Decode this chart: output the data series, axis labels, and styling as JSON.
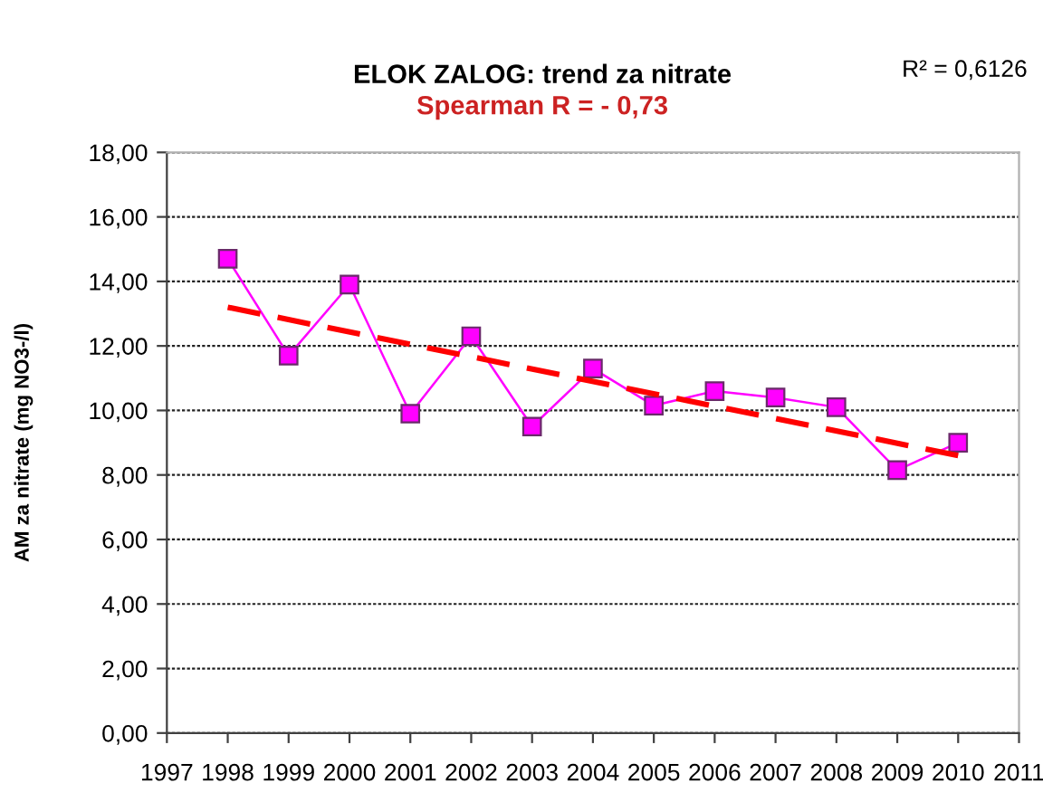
{
  "chart_data": {
    "type": "line",
    "title": "ELOK ZALOG: trend za nitrate",
    "subtitle": "Spearman R = - 0,73",
    "ylabel": "AM za nitrate (mg NO3-/l)",
    "annotations": [
      "R² = 0,6126"
    ],
    "series": [
      {
        "color": "#ff00ff",
        "marker": "square",
        "line_style": "solid",
        "x": [
          1998,
          1999,
          2000,
          2001,
          2002,
          2003,
          2004,
          2005,
          2006,
          2007,
          2008,
          2009,
          2010
        ],
        "values": [
          14.7,
          11.7,
          13.9,
          9.9,
          12.3,
          9.5,
          11.3,
          10.15,
          10.6,
          10.4,
          10.1,
          8.15,
          9.0
        ]
      },
      {
        "color": "#ff0000",
        "marker": "none",
        "line_style": "dashed",
        "x": [
          1998,
          2010
        ],
        "values": [
          13.2,
          8.6
        ]
      }
    ],
    "xlim": [
      1997,
      2011
    ],
    "xticks": [
      1997,
      1998,
      1999,
      2000,
      2001,
      2002,
      2003,
      2004,
      2005,
      2006,
      2007,
      2008,
      2009,
      2010,
      2011
    ],
    "ylim": [
      0,
      18
    ],
    "yticks": [
      {
        "value": 0,
        "label": "0,00"
      },
      {
        "value": 2,
        "label": "2,00"
      },
      {
        "value": 4,
        "label": "4,00"
      },
      {
        "value": 6,
        "label": "6,00"
      },
      {
        "value": 8,
        "label": "8,00"
      },
      {
        "value": 10,
        "label": "10,00"
      },
      {
        "value": 12,
        "label": "12,00"
      },
      {
        "value": 14,
        "label": "14,00"
      },
      {
        "value": 16,
        "label": "16,00"
      },
      {
        "value": 18,
        "label": "18,00"
      }
    ],
    "grid": "y"
  }
}
